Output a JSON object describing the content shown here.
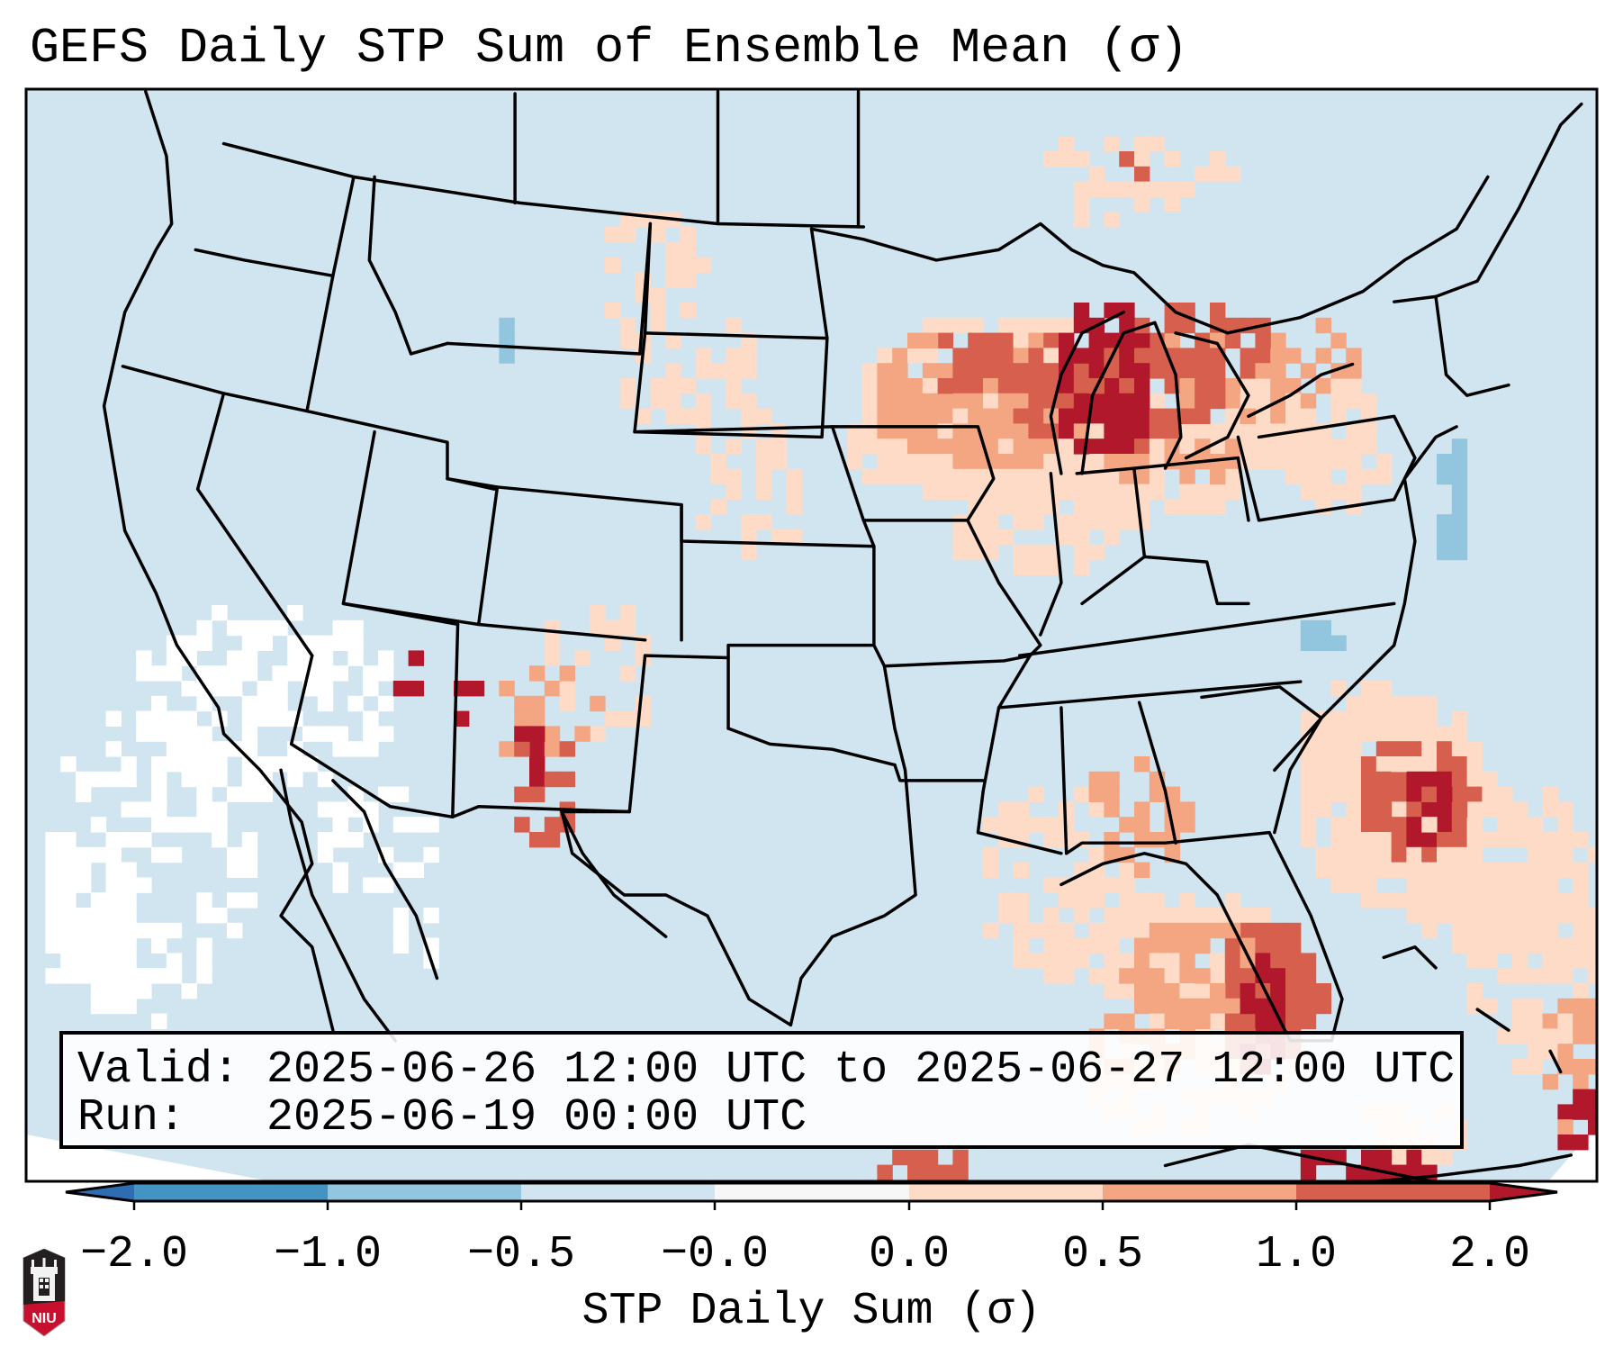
{
  "title": "GEFS Daily STP Sum of Ensemble Mean (σ)",
  "info_box": {
    "valid_label": "Valid:",
    "valid_start": "2025-06-26 12:00 UTC",
    "valid_connector": "to",
    "valid_end": "2025-06-27 12:00 UTC",
    "run_label": "Run:",
    "run_time": "2025-06-19 00:00 UTC",
    "line1": "Valid: 2025-06-26 12:00 UTC to 2025-06-27 12:00 UTC",
    "line2": "Run:   2025-06-19 00:00 UTC"
  },
  "colorbar": {
    "label": "STP Daily Sum (σ)",
    "tick_labels": [
      "−2.0",
      "−1.0",
      "−0.5",
      "−0.0",
      "0.0",
      "0.5",
      "1.0",
      "2.0"
    ],
    "boundaries": [
      -2.0,
      -1.0,
      -0.5,
      -0.0,
      0.0,
      0.5,
      1.0,
      2.0
    ],
    "extend": "both",
    "colors": {
      "under": "#2f6db3",
      "bins": [
        "#4393c3",
        "#92c5de",
        "#d1e5f0",
        "#f7f7f7",
        "#fddbc7",
        "#f4a582",
        "#d6604d"
      ],
      "over": "#b2182b"
    }
  },
  "map": {
    "projection": "Lambert Conformal",
    "region": "Contiguous United States",
    "background_color": "#d1e5f0",
    "boundary_color": "#000000",
    "features": [
      "coastlines",
      "state borders",
      "country borders",
      "great lakes"
    ]
  },
  "logo": {
    "text": "NIU",
    "colors": {
      "top": "#231f20",
      "bottom": "#c8102e"
    }
  }
}
